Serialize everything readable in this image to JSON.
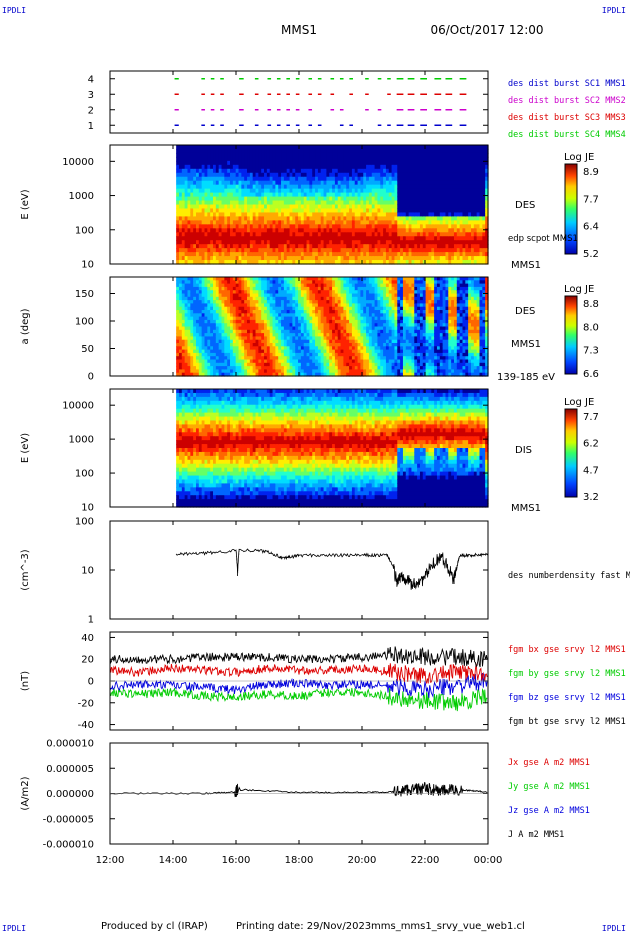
{
  "header": {
    "corner_logo": "IPDLI",
    "mission": "MMS1",
    "datetime": "06/Oct/2017 12:00"
  },
  "footer": {
    "produced_by": "Produced by cl (IRAP)",
    "printing_date": "Printing date: 29/Nov/2023",
    "filename": "mms_mms1_srvy_vue_web1.cl"
  },
  "chart_data": {
    "type": "line",
    "x_axis": {
      "ticks": [
        "12:00",
        "14:00",
        "16:00",
        "18:00",
        "20:00",
        "22:00",
        "00:00"
      ],
      "range_hours": [
        12,
        24
      ]
    },
    "panels": [
      {
        "id": "burst",
        "type": "scatter",
        "yticks": [
          "1",
          "2",
          "3",
          "4"
        ],
        "ylim": [
          0.5,
          4.5
        ],
        "legend": [
          {
            "label": "des dist burst SC1 MMS1",
            "color": "#0000cc",
            "level": 1
          },
          {
            "label": "des dist burst SC2 MMS2",
            "color": "#cc00cc",
            "level": 2
          },
          {
            "label": "des dist burst SC3 MMS3",
            "color": "#dd0000",
            "level": 3
          },
          {
            "label": "des dist burst SC4 MMS4",
            "color": "#00cc00",
            "level": 4
          }
        ],
        "burst_hours": [
          [
            14.05,
            14.12
          ],
          [
            14.9,
            14.95
          ],
          [
            15.2,
            15.25
          ],
          [
            15.5,
            15.55
          ],
          [
            16.1,
            16.18
          ],
          [
            16.6,
            16.65
          ],
          [
            17.0,
            17.05
          ],
          [
            17.3,
            17.35
          ],
          [
            17.6,
            17.65
          ],
          [
            17.9,
            17.95
          ],
          [
            18.3,
            18.35
          ],
          [
            18.6,
            18.65
          ],
          [
            19.0,
            19.05
          ],
          [
            19.3,
            19.35
          ],
          [
            19.6,
            19.65
          ],
          [
            20.1,
            20.15
          ],
          [
            20.5,
            20.55
          ],
          [
            20.8,
            20.85
          ],
          [
            21.1,
            21.25
          ],
          [
            21.45,
            21.6
          ],
          [
            21.85,
            22.0
          ],
          [
            22.3,
            22.45
          ],
          [
            22.65,
            22.8
          ],
          [
            23.1,
            23.25
          ]
        ]
      },
      {
        "id": "des_energy",
        "type": "heatmap",
        "ylabel": "E (eV)",
        "yticks": [
          "10",
          "100",
          "1000",
          "10000"
        ],
        "ylim": [
          10,
          30000
        ],
        "log": true,
        "data_start_hour": 14.1,
        "right_labels": [
          "DES",
          "edp scpot MMS1",
          "MMS1"
        ],
        "colorbar": {
          "title": "Log JE",
          "ticks": [
            "8.9",
            "7.7",
            "6.4",
            "5.2"
          ],
          "range": [
            5.2,
            8.9
          ]
        }
      },
      {
        "id": "des_pitch",
        "type": "heatmap",
        "ylabel": "a (deg)",
        "yticks": [
          "0",
          "50",
          "100",
          "150"
        ],
        "ylim": [
          0,
          180
        ],
        "data_start_hour": 14.1,
        "right_labels": [
          "DES",
          "MMS1",
          "139-185 eV"
        ],
        "colorbar": {
          "title": "Log JE",
          "ticks": [
            "8.8",
            "8.0",
            "7.3",
            "6.6"
          ],
          "range": [
            6.6,
            8.8
          ]
        }
      },
      {
        "id": "dis_energy",
        "type": "heatmap",
        "ylabel": "E (eV)",
        "yticks": [
          "10",
          "100",
          "1000",
          "10000"
        ],
        "ylim": [
          10,
          30000
        ],
        "log": true,
        "data_start_hour": 14.1,
        "right_labels": [
          "DIS",
          "MMS1"
        ],
        "colorbar": {
          "title": "Log JE",
          "ticks": [
            "7.7",
            "6.2",
            "4.7",
            "3.2"
          ],
          "range": [
            3.2,
            7.7
          ]
        }
      },
      {
        "id": "density",
        "type": "line",
        "ylabel": "(cm^-3)",
        "yticks": [
          "1",
          "10",
          "100"
        ],
        "ylim": [
          1,
          100
        ],
        "log": true,
        "legend": [
          {
            "label": "des numberdensity fast M",
            "color": "#000000"
          }
        ],
        "x": [
          14.1,
          15.0,
          16.0,
          16.05,
          16.1,
          17.0,
          17.5,
          18.0,
          19.0,
          20.0,
          20.8,
          21.1,
          21.3,
          21.6,
          22.0,
          22.5,
          22.9,
          23.0,
          23.1,
          23.5,
          24.0
        ],
        "y": [
          21,
          22,
          25,
          8,
          26,
          24,
          17,
          20,
          20,
          20,
          20,
          6,
          8,
          5,
          7,
          20,
          6,
          10,
          20,
          20,
          21
        ]
      },
      {
        "id": "fgm",
        "type": "line",
        "ylabel": "(nT)",
        "yticks": [
          "-40",
          "-20",
          "0",
          "20",
          "40"
        ],
        "ylim": [
          -45,
          45
        ],
        "legend": [
          {
            "label": "fgm bx gse srvy l2 MMS1",
            "color": "#dd0000"
          },
          {
            "label": "fgm by gse srvy l2 MMS1",
            "color": "#00cc00"
          },
          {
            "label": "fgm bz gse srvy l2 MMS1",
            "color": "#0000dd"
          },
          {
            "label": "fgm bt gse srvy l2 MMS1",
            "color": "#000000"
          }
        ],
        "x": [
          12.0,
          13.0,
          14.0,
          15.0,
          16.0,
          17.0,
          18.0,
          19.0,
          20.0,
          21.0,
          22.0,
          23.0,
          24.0
        ],
        "series": [
          {
            "name": "bx",
            "values": [
              10,
              8,
              12,
              10,
              8,
              12,
              10,
              10,
              12,
              8,
              5,
              8,
              8
            ]
          },
          {
            "name": "by",
            "values": [
              -10,
              -12,
              -10,
              -14,
              -15,
              -12,
              -14,
              -10,
              -10,
              -15,
              -18,
              -20,
              -14
            ]
          },
          {
            "name": "bz",
            "values": [
              -5,
              -3,
              -4,
              -6,
              -8,
              -3,
              -2,
              -4,
              -3,
              -5,
              -8,
              -4,
              0
            ]
          },
          {
            "name": "bt",
            "values": [
              20,
              20,
              20,
              22,
              22,
              22,
              20,
              20,
              22,
              24,
              22,
              22,
              20
            ]
          }
        ]
      },
      {
        "id": "current",
        "type": "line",
        "ylabel": "(A/m2)",
        "yticks": [
          "-0.000010",
          "-0.000005",
          "0.000000",
          "0.000005",
          "0.000010"
        ],
        "ylim": [
          -1e-05,
          1e-05
        ],
        "legend": [
          {
            "label": "Jx gse A m2 MMS1",
            "color": "#dd0000"
          },
          {
            "label": "Jy gse A m2 MMS1",
            "color": "#00cc00"
          },
          {
            "label": "Jz gse A m2 MMS1",
            "color": "#0000dd"
          },
          {
            "label": "J A m2 MMS1",
            "color": "#000000"
          }
        ],
        "x": [
          12.0,
          15.0,
          16.0,
          16.05,
          18.0,
          20.0,
          21.0,
          21.5,
          22.0,
          22.5,
          23.0,
          24.0
        ],
        "series": [
          {
            "name": "J",
            "values": [
              0,
              0,
              3e-07,
              8e-07,
              2e-07,
              2e-07,
              3e-07,
              8e-07,
              1e-06,
              5e-07,
              8e-07,
              3e-07
            ]
          }
        ]
      }
    ]
  }
}
